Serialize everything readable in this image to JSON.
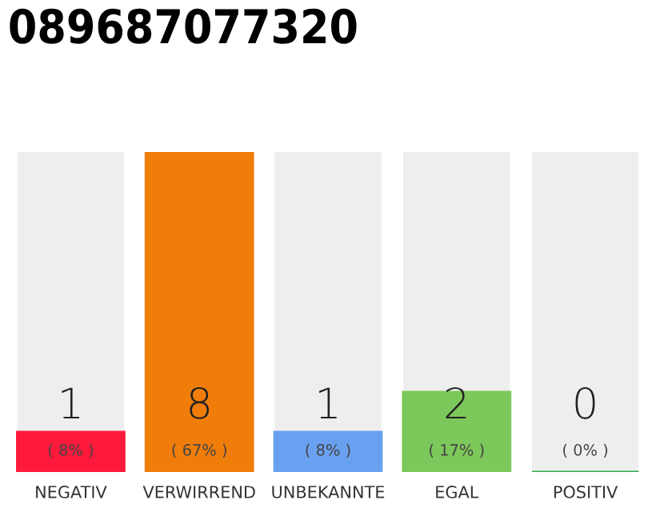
{
  "chart_data": {
    "type": "bar",
    "title": "089687077320",
    "categories": [
      "NEGATIV",
      "VERWIRREND",
      "UNBEKANNTE",
      "EGAL",
      "POSITIV"
    ],
    "values": [
      1,
      8,
      1,
      2,
      0
    ],
    "colors": [
      "#ff1a3c",
      "#f07d0a",
      "#6aa0f0",
      "#7dc85a",
      "#2eaa4a"
    ],
    "value_labels": [
      "1\n( 8% )",
      "8\n( 67% )",
      "1\n( 8% )",
      "2\n( 17% )",
      "0\n( 0% )"
    ],
    "grid": false,
    "legend": false
  }
}
